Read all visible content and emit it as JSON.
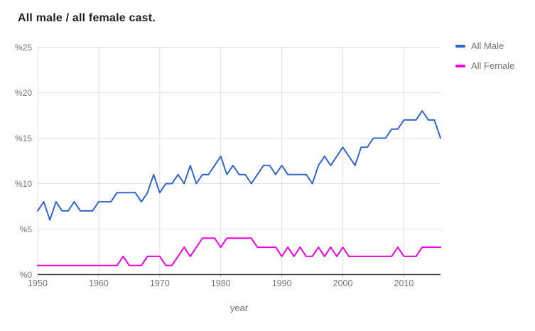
{
  "title": "All male / all female cast.",
  "colors": {
    "male": "#3366cc",
    "female": "#ee00dd",
    "grid": "#e0e0e0",
    "axis_baseline": "#424242",
    "tick_mark": "#bdbdbd",
    "tick_text": "#757575",
    "title_text": "#212121"
  },
  "legend": {
    "items": [
      {
        "label": "All Male",
        "color_key": "male"
      },
      {
        "label": "All Female",
        "color_key": "female"
      }
    ]
  },
  "chart_data": {
    "type": "line",
    "title": "All male / all female cast.",
    "xlabel": "year",
    "ylabel": "",
    "xlim": [
      1950,
      2016
    ],
    "ylim": [
      0,
      25
    ],
    "grid": true,
    "legend_position": "top-right",
    "xticks": [
      1950,
      1960,
      1970,
      1980,
      1990,
      2000,
      2010
    ],
    "yticks": [
      {
        "value": 0,
        "label": "%0"
      },
      {
        "value": 5,
        "label": "%5"
      },
      {
        "value": 10,
        "label": "%10"
      },
      {
        "value": 15,
        "label": "%15"
      },
      {
        "value": 20,
        "label": "%20"
      },
      {
        "value": 25,
        "label": "%25"
      }
    ],
    "x": [
      1950,
      1951,
      1952,
      1953,
      1954,
      1955,
      1956,
      1957,
      1958,
      1959,
      1960,
      1961,
      1962,
      1963,
      1964,
      1965,
      1966,
      1967,
      1968,
      1969,
      1970,
      1971,
      1972,
      1973,
      1974,
      1975,
      1976,
      1977,
      1978,
      1979,
      1980,
      1981,
      1982,
      1983,
      1984,
      1985,
      1986,
      1987,
      1988,
      1989,
      1990,
      1991,
      1992,
      1993,
      1994,
      1995,
      1996,
      1997,
      1998,
      1999,
      2000,
      2001,
      2002,
      2003,
      2004,
      2005,
      2006,
      2007,
      2008,
      2009,
      2010,
      2011,
      2012,
      2013,
      2014,
      2015,
      2016
    ],
    "series": [
      {
        "name": "All Male",
        "color_key": "male",
        "values": [
          7,
          8,
          6,
          8,
          7,
          7,
          8,
          7,
          7,
          7,
          8,
          8,
          8,
          9,
          9,
          9,
          9,
          8,
          9,
          11,
          9,
          10,
          10,
          11,
          10,
          12,
          10,
          11,
          11,
          12,
          13,
          11,
          12,
          11,
          11,
          10,
          11,
          12,
          12,
          11,
          12,
          11,
          11,
          11,
          11,
          10,
          12,
          13,
          12,
          13,
          14,
          13,
          12,
          14,
          14,
          15,
          15,
          15,
          16,
          16,
          17,
          17,
          17,
          18,
          17,
          17,
          15
        ]
      },
      {
        "name": "All Female",
        "color_key": "female",
        "values": [
          1,
          1,
          1,
          1,
          1,
          1,
          1,
          1,
          1,
          1,
          1,
          1,
          1,
          1,
          2,
          1,
          1,
          1,
          2,
          2,
          2,
          1,
          1,
          2,
          3,
          2,
          3,
          4,
          4,
          4,
          3,
          4,
          4,
          4,
          4,
          4,
          3,
          3,
          3,
          3,
          2,
          3,
          2,
          3,
          2,
          2,
          3,
          2,
          3,
          2,
          3,
          2,
          2,
          2,
          2,
          2,
          2,
          2,
          2,
          3,
          2,
          2,
          2,
          3,
          3,
          3,
          3
        ]
      }
    ]
  }
}
